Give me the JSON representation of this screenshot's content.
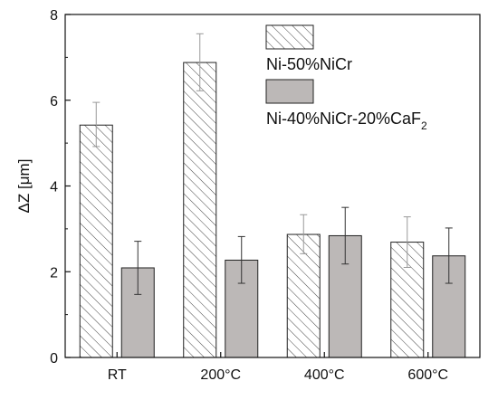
{
  "chart_data": {
    "type": "bar",
    "categories": [
      "RT",
      "200°C",
      "400°C",
      "600°C"
    ],
    "series": [
      {
        "name": "Ni-50%NiCr",
        "values": [
          5.42,
          6.88,
          2.87,
          2.69
        ],
        "error_low": [
          4.92,
          6.22,
          2.42,
          2.1
        ],
        "error_high": [
          5.95,
          7.55,
          3.33,
          3.28
        ],
        "fill": "hatched"
      },
      {
        "name": "Ni-40%NiCr-20%CaF",
        "name_sub": "2",
        "values": [
          2.09,
          2.27,
          2.84,
          2.37
        ],
        "error_low": [
          1.47,
          1.73,
          2.18,
          1.73
        ],
        "error_high": [
          2.71,
          2.82,
          3.5,
          3.02
        ],
        "fill": "#bcb8b7"
      }
    ],
    "ylabel_greek": "Δ",
    "ylabel_text": "Z [μm]",
    "ylim": [
      0,
      8
    ],
    "yticks": [
      0,
      2,
      4,
      6,
      8
    ],
    "legend_position": "top-right",
    "grid": false
  }
}
